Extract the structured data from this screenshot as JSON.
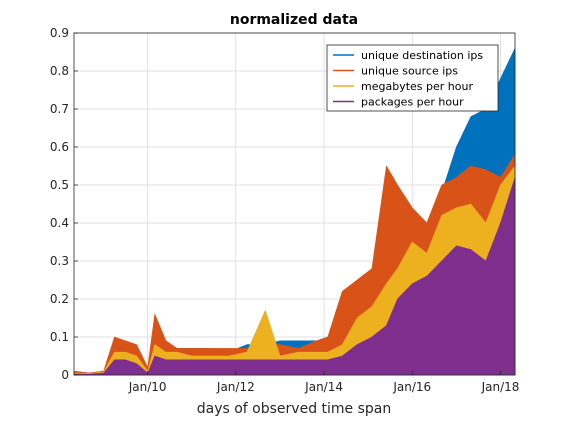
{
  "chart_data": {
    "type": "area",
    "title": "normalized data",
    "xlabel": "days of observed time span",
    "ylabel": "",
    "x_range": [
      "2008-05-01",
      "2018-05-01"
    ],
    "ylim": [
      0,
      0.9
    ],
    "x_ticks": [
      {
        "date": "2010-01-01",
        "label": "Jan/10"
      },
      {
        "date": "2012-01-01",
        "label": "Jan/12"
      },
      {
        "date": "2014-01-01",
        "label": "Jan/14"
      },
      {
        "date": "2016-01-01",
        "label": "Jan/16"
      },
      {
        "date": "2018-01-01",
        "label": "Jan/18"
      }
    ],
    "y_ticks": [
      "0",
      "0.1",
      "0.2",
      "0.3",
      "0.4",
      "0.5",
      "0.6",
      "0.7",
      "0.8",
      "0.9"
    ],
    "grid": true,
    "legend_position": "top-right",
    "x": [
      "2008-05-01",
      "2008-09-01",
      "2009-01-01",
      "2009-04-01",
      "2009-07-01",
      "2009-10-01",
      "2010-01-01",
      "2010-03-01",
      "2010-06-01",
      "2010-09-01",
      "2011-01-01",
      "2011-06-01",
      "2011-11-01",
      "2012-04-01",
      "2012-09-01",
      "2013-01-01",
      "2013-06-01",
      "2013-11-01",
      "2014-02-01",
      "2014-06-01",
      "2014-10-01",
      "2015-02-01",
      "2015-06-01",
      "2015-09-01",
      "2016-01-01",
      "2016-05-01",
      "2016-09-01",
      "2017-01-01",
      "2017-05-01",
      "2017-09-01",
      "2018-01-01",
      "2018-05-01"
    ],
    "series": [
      {
        "name": "unique destination ips",
        "color": "#0072BD",
        "values": [
          0.01,
          0.005,
          0.01,
          0.08,
          0.07,
          0.06,
          0.01,
          0.12,
          0.08,
          0.07,
          0.07,
          0.07,
          0.06,
          0.08,
          0.08,
          0.09,
          0.09,
          0.09,
          0.1,
          0.14,
          0.2,
          0.22,
          0.26,
          0.3,
          0.4,
          0.36,
          0.48,
          0.6,
          0.68,
          0.7,
          0.78,
          0.86
        ]
      },
      {
        "name": "unique source ips",
        "color": "#D95319",
        "values": [
          0.01,
          0.005,
          0.01,
          0.1,
          0.09,
          0.08,
          0.02,
          0.16,
          0.09,
          0.07,
          0.07,
          0.07,
          0.07,
          0.07,
          0.08,
          0.08,
          0.07,
          0.09,
          0.1,
          0.22,
          0.25,
          0.28,
          0.55,
          0.5,
          0.44,
          0.4,
          0.5,
          0.52,
          0.55,
          0.54,
          0.52,
          0.58
        ]
      },
      {
        "name": "megabytes per hour",
        "color": "#EDB120",
        "values": [
          0.005,
          0.004,
          0.008,
          0.06,
          0.06,
          0.05,
          0.01,
          0.08,
          0.06,
          0.06,
          0.05,
          0.05,
          0.05,
          0.06,
          0.17,
          0.05,
          0.06,
          0.06,
          0.06,
          0.08,
          0.15,
          0.18,
          0.24,
          0.28,
          0.35,
          0.32,
          0.42,
          0.44,
          0.45,
          0.4,
          0.5,
          0.55
        ]
      },
      {
        "name": "packages per hour",
        "color": "#7E2F8E",
        "values": [
          0.003,
          0.002,
          0.005,
          0.04,
          0.04,
          0.03,
          0.005,
          0.05,
          0.04,
          0.04,
          0.04,
          0.04,
          0.04,
          0.04,
          0.04,
          0.04,
          0.04,
          0.04,
          0.04,
          0.05,
          0.08,
          0.1,
          0.13,
          0.2,
          0.24,
          0.26,
          0.3,
          0.34,
          0.33,
          0.3,
          0.4,
          0.52
        ]
      }
    ]
  }
}
